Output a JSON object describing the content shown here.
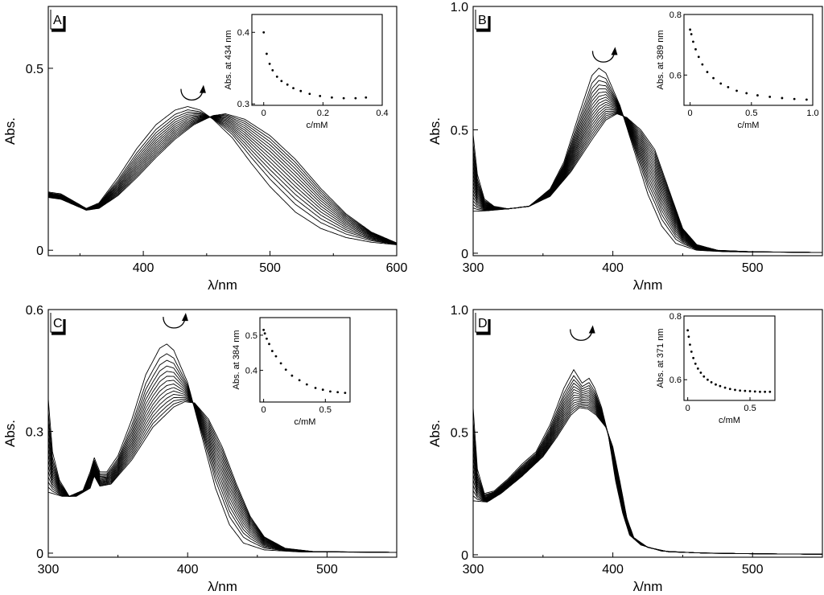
{
  "chart_data": [
    {
      "id": "A",
      "type": "line",
      "panel_label": "A",
      "xlabel": "λ/nm",
      "ylabel": "Abs.",
      "xlim": [
        325,
        600
      ],
      "ylim": [
        -0.015,
        0.67
      ],
      "xticks": [
        400,
        500,
        600
      ],
      "xtick_labels": [
        "400",
        "500",
        "600"
      ],
      "yticks": [
        0,
        0.5
      ],
      "ytick_labels": [
        "0",
        "0.5"
      ],
      "n_curves": 14,
      "spectrum_first": [
        [
          325,
          0.16
        ],
        [
          335,
          0.155
        ],
        [
          345,
          0.135
        ],
        [
          355,
          0.115
        ],
        [
          365,
          0.13
        ],
        [
          380,
          0.2
        ],
        [
          395,
          0.28
        ],
        [
          410,
          0.345
        ],
        [
          425,
          0.385
        ],
        [
          435,
          0.395
        ],
        [
          445,
          0.385
        ],
        [
          455,
          0.36
        ],
        [
          470,
          0.31
        ],
        [
          485,
          0.24
        ],
        [
          500,
          0.175
        ],
        [
          520,
          0.105
        ],
        [
          540,
          0.06
        ],
        [
          560,
          0.035
        ],
        [
          580,
          0.022
        ],
        [
          600,
          0.015
        ]
      ],
      "spectrum_last": [
        [
          325,
          0.145
        ],
        [
          335,
          0.14
        ],
        [
          345,
          0.125
        ],
        [
          355,
          0.11
        ],
        [
          365,
          0.115
        ],
        [
          380,
          0.15
        ],
        [
          395,
          0.2
        ],
        [
          410,
          0.255
        ],
        [
          425,
          0.305
        ],
        [
          440,
          0.345
        ],
        [
          455,
          0.37
        ],
        [
          465,
          0.375
        ],
        [
          480,
          0.36
        ],
        [
          500,
          0.315
        ],
        [
          520,
          0.25
        ],
        [
          540,
          0.17
        ],
        [
          560,
          0.1
        ],
        [
          580,
          0.05
        ],
        [
          600,
          0.02
        ]
      ],
      "arrow_at": [
        438,
        0.43
      ],
      "inset": {
        "ylabel": "Abs. at 434 nm",
        "xlabel": "c/mM",
        "xlim": [
          -0.04,
          0.4
        ],
        "ylim": [
          0.298,
          0.425
        ],
        "xticks": [
          0,
          0.2,
          0.4
        ],
        "xtick_labels": [
          "0",
          "0.2",
          "0.4"
        ],
        "yticks": [
          0.3,
          0.4
        ],
        "ytick_labels": [
          "0.3",
          "0.4"
        ],
        "x": [
          0.0,
          0.01,
          0.02,
          0.03,
          0.045,
          0.06,
          0.08,
          0.1,
          0.125,
          0.155,
          0.19,
          0.23,
          0.27,
          0.31,
          0.345
        ],
        "y": [
          0.4,
          0.37,
          0.356,
          0.347,
          0.338,
          0.332,
          0.327,
          0.322,
          0.318,
          0.314,
          0.311,
          0.309,
          0.308,
          0.308,
          0.309
        ]
      }
    },
    {
      "id": "B",
      "type": "line",
      "panel_label": "B",
      "xlabel": "λ/nm",
      "ylabel": "Abs.",
      "xlim": [
        300,
        550
      ],
      "ylim": [
        -0.01,
        1.0
      ],
      "xticks": [
        300,
        400,
        500
      ],
      "xtick_labels": [
        "300",
        "400",
        "500"
      ],
      "yticks": [
        0,
        0.5,
        1.0
      ],
      "ytick_labels": [
        "0",
        "0.5",
        "1.0"
      ],
      "n_curves": 18,
      "spectrum_first": [
        [
          300,
          0.48
        ],
        [
          303,
          0.32
        ],
        [
          308,
          0.22
        ],
        [
          315,
          0.19
        ],
        [
          325,
          0.18
        ],
        [
          340,
          0.19
        ],
        [
          355,
          0.26
        ],
        [
          365,
          0.37
        ],
        [
          375,
          0.55
        ],
        [
          385,
          0.72
        ],
        [
          390,
          0.75
        ],
        [
          395,
          0.73
        ],
        [
          405,
          0.6
        ],
        [
          415,
          0.42
        ],
        [
          425,
          0.24
        ],
        [
          435,
          0.11
        ],
        [
          445,
          0.04
        ],
        [
          460,
          0.012
        ],
        [
          480,
          0.006
        ],
        [
          500,
          0.005
        ],
        [
          550,
          0.003
        ]
      ],
      "spectrum_last": [
        [
          300,
          0.17
        ],
        [
          310,
          0.172
        ],
        [
          325,
          0.18
        ],
        [
          340,
          0.19
        ],
        [
          355,
          0.23
        ],
        [
          370,
          0.33
        ],
        [
          385,
          0.46
        ],
        [
          395,
          0.54
        ],
        [
          403,
          0.565
        ],
        [
          410,
          0.55
        ],
        [
          420,
          0.5
        ],
        [
          430,
          0.42
        ],
        [
          440,
          0.26
        ],
        [
          450,
          0.1
        ],
        [
          460,
          0.035
        ],
        [
          475,
          0.012
        ],
        [
          500,
          0.006
        ],
        [
          550,
          0.003
        ]
      ],
      "arrow_at": [
        393,
        0.8
      ],
      "inset": {
        "ylabel": "Abs. at 389 nm",
        "xlabel": "c/mM",
        "xlim": [
          -0.05,
          1.0
        ],
        "ylim": [
          0.5,
          0.8
        ],
        "xticks": [
          0,
          0.5,
          1.0
        ],
        "xtick_labels": [
          "0",
          "0.5",
          "1.0"
        ],
        "yticks": [
          0.6,
          0.8
        ],
        "ytick_labels": [
          "0.6",
          "0.8"
        ],
        "x": [
          0.0,
          0.01,
          0.025,
          0.045,
          0.07,
          0.1,
          0.14,
          0.19,
          0.25,
          0.31,
          0.38,
          0.46,
          0.55,
          0.65,
          0.75,
          0.85,
          0.95
        ],
        "y": [
          0.75,
          0.735,
          0.71,
          0.685,
          0.66,
          0.635,
          0.61,
          0.59,
          0.572,
          0.56,
          0.548,
          0.54,
          0.533,
          0.528,
          0.524,
          0.521,
          0.519
        ]
      }
    },
    {
      "id": "C",
      "type": "line",
      "panel_label": "C",
      "xlabel": "λ/nm",
      "ylabel": "Abs.",
      "xlim": [
        300,
        550
      ],
      "ylim": [
        -0.01,
        0.6
      ],
      "xticks": [
        300,
        400,
        500
      ],
      "xtick_labels": [
        "300",
        "400",
        "500"
      ],
      "yticks": [
        0,
        0.3,
        0.6
      ],
      "ytick_labels": [
        "0",
        "0.3",
        "0.6"
      ],
      "n_curves": 15,
      "spectrum_first": [
        [
          300,
          0.38
        ],
        [
          303,
          0.25
        ],
        [
          308,
          0.18
        ],
        [
          315,
          0.14
        ],
        [
          325,
          0.155
        ],
        [
          330,
          0.2
        ],
        [
          333,
          0.235
        ],
        [
          337,
          0.2
        ],
        [
          342,
          0.2
        ],
        [
          350,
          0.24
        ],
        [
          360,
          0.33
        ],
        [
          370,
          0.44
        ],
        [
          380,
          0.505
        ],
        [
          385,
          0.515
        ],
        [
          390,
          0.5
        ],
        [
          400,
          0.42
        ],
        [
          410,
          0.29
        ],
        [
          420,
          0.16
        ],
        [
          430,
          0.07
        ],
        [
          440,
          0.025
        ],
        [
          455,
          0.008
        ],
        [
          480,
          0.003
        ],
        [
          550,
          0.002
        ]
      ],
      "spectrum_last": [
        [
          300,
          0.15
        ],
        [
          310,
          0.14
        ],
        [
          320,
          0.14
        ],
        [
          330,
          0.16
        ],
        [
          333,
          0.19
        ],
        [
          337,
          0.165
        ],
        [
          345,
          0.17
        ],
        [
          360,
          0.23
        ],
        [
          375,
          0.31
        ],
        [
          390,
          0.36
        ],
        [
          398,
          0.373
        ],
        [
          405,
          0.37
        ],
        [
          415,
          0.33
        ],
        [
          425,
          0.26
        ],
        [
          435,
          0.17
        ],
        [
          445,
          0.09
        ],
        [
          455,
          0.04
        ],
        [
          470,
          0.012
        ],
        [
          490,
          0.004
        ],
        [
          550,
          0.002
        ]
      ],
      "arrow_at": [
        390,
        0.57
      ],
      "inset": {
        "ylabel": "Abs. at 384 nm",
        "xlabel": "c/mM",
        "xlim": [
          -0.03,
          0.7
        ],
        "ylim": [
          0.31,
          0.55
        ],
        "xticks": [
          0,
          0.5
        ],
        "xtick_labels": [
          "0",
          "0.5"
        ],
        "yticks": [
          0.4,
          0.5
        ],
        "ytick_labels": [
          "0.4",
          "0.5"
        ],
        "x": [
          0.0,
          0.01,
          0.025,
          0.045,
          0.07,
          0.1,
          0.14,
          0.18,
          0.23,
          0.29,
          0.35,
          0.42,
          0.48,
          0.54,
          0.6,
          0.66
        ],
        "y": [
          0.515,
          0.505,
          0.49,
          0.475,
          0.455,
          0.44,
          0.42,
          0.402,
          0.385,
          0.372,
          0.36,
          0.35,
          0.345,
          0.34,
          0.338,
          0.336
        ]
      }
    },
    {
      "id": "D",
      "type": "line",
      "panel_label": "D",
      "xlabel": "λ/nm",
      "ylabel": "Abs.",
      "xlim": [
        300,
        550
      ],
      "ylim": [
        -0.01,
        1.0
      ],
      "xticks": [
        300,
        400,
        500
      ],
      "xtick_labels": [
        "300",
        "400",
        "500"
      ],
      "yticks": [
        0,
        0.5,
        1.0
      ],
      "ytick_labels": [
        "0",
        "0.5",
        "1.0"
      ],
      "n_curves": 15,
      "spectrum_first": [
        [
          300,
          0.6
        ],
        [
          303,
          0.35
        ],
        [
          308,
          0.25
        ],
        [
          315,
          0.26
        ],
        [
          325,
          0.31
        ],
        [
          335,
          0.37
        ],
        [
          345,
          0.42
        ],
        [
          355,
          0.53
        ],
        [
          365,
          0.68
        ],
        [
          372,
          0.755
        ],
        [
          378,
          0.7
        ],
        [
          383,
          0.72
        ],
        [
          387,
          0.68
        ],
        [
          392,
          0.6
        ],
        [
          397,
          0.48
        ],
        [
          402,
          0.3
        ],
        [
          407,
          0.17
        ],
        [
          412,
          0.08
        ],
        [
          420,
          0.04
        ],
        [
          435,
          0.015
        ],
        [
          460,
          0.008
        ],
        [
          500,
          0.004
        ],
        [
          550,
          0.002
        ]
      ],
      "spectrum_last": [
        [
          300,
          0.22
        ],
        [
          310,
          0.215
        ],
        [
          320,
          0.25
        ],
        [
          335,
          0.32
        ],
        [
          350,
          0.4
        ],
        [
          360,
          0.48
        ],
        [
          370,
          0.57
        ],
        [
          376,
          0.6
        ],
        [
          382,
          0.595
        ],
        [
          388,
          0.57
        ],
        [
          395,
          0.52
        ],
        [
          400,
          0.44
        ],
        [
          405,
          0.3
        ],
        [
          410,
          0.15
        ],
        [
          415,
          0.07
        ],
        [
          425,
          0.03
        ],
        [
          440,
          0.012
        ],
        [
          470,
          0.006
        ],
        [
          550,
          0.002
        ]
      ],
      "arrow_at": [
        377,
        0.9
      ],
      "inset": {
        "ylabel": "Abs. at 371 nm",
        "xlabel": "c/mM",
        "xlim": [
          -0.03,
          0.7
        ],
        "ylim": [
          0.535,
          0.8
        ],
        "xticks": [
          0,
          0.5
        ],
        "xtick_labels": [
          "0",
          "0.5"
        ],
        "yticks": [
          0.6,
          0.8
        ],
        "ytick_labels": [
          "0.6",
          "0.8"
        ],
        "x": [
          0.0,
          0.008,
          0.018,
          0.03,
          0.045,
          0.062,
          0.082,
          0.105,
          0.13,
          0.16,
          0.19,
          0.225,
          0.26,
          0.3,
          0.34,
          0.38,
          0.42,
          0.46,
          0.5,
          0.54,
          0.58,
          0.62,
          0.66
        ],
        "y": [
          0.755,
          0.735,
          0.71,
          0.688,
          0.668,
          0.65,
          0.635,
          0.622,
          0.61,
          0.6,
          0.592,
          0.585,
          0.58,
          0.575,
          0.571,
          0.568,
          0.566,
          0.565,
          0.564,
          0.563,
          0.562,
          0.562,
          0.562
        ]
      }
    }
  ]
}
